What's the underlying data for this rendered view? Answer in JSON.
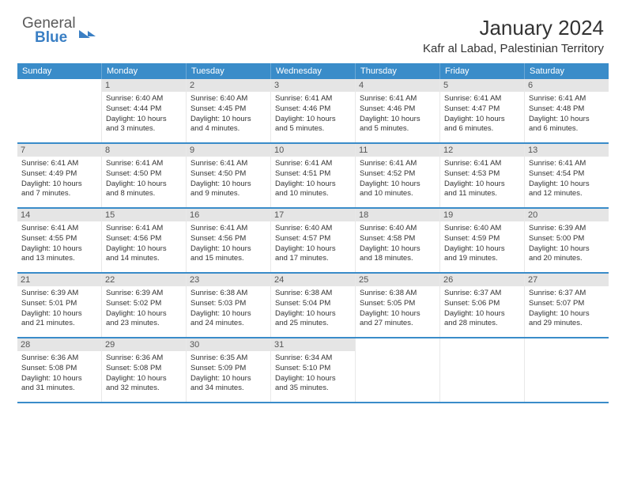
{
  "logo": {
    "line1": "General",
    "line2": "Blue"
  },
  "title": "January 2024",
  "location": "Kafr al Labad, Palestinian Territory",
  "colors": {
    "header_bg": "#3a8cc9",
    "header_text": "#ffffff",
    "daynum_bg": "#e5e5e5",
    "border": "#3a8cc9",
    "text": "#333333",
    "logo_gray": "#5a5a5a",
    "logo_blue": "#3a7fc4"
  },
  "weekdays": [
    "Sunday",
    "Monday",
    "Tuesday",
    "Wednesday",
    "Thursday",
    "Friday",
    "Saturday"
  ],
  "weeks": [
    [
      {
        "n": "",
        "sr": "",
        "ss": "",
        "d1": "",
        "d2": ""
      },
      {
        "n": "1",
        "sr": "Sunrise: 6:40 AM",
        "ss": "Sunset: 4:44 PM",
        "d1": "Daylight: 10 hours",
        "d2": "and 3 minutes."
      },
      {
        "n": "2",
        "sr": "Sunrise: 6:40 AM",
        "ss": "Sunset: 4:45 PM",
        "d1": "Daylight: 10 hours",
        "d2": "and 4 minutes."
      },
      {
        "n": "3",
        "sr": "Sunrise: 6:41 AM",
        "ss": "Sunset: 4:46 PM",
        "d1": "Daylight: 10 hours",
        "d2": "and 5 minutes."
      },
      {
        "n": "4",
        "sr": "Sunrise: 6:41 AM",
        "ss": "Sunset: 4:46 PM",
        "d1": "Daylight: 10 hours",
        "d2": "and 5 minutes."
      },
      {
        "n": "5",
        "sr": "Sunrise: 6:41 AM",
        "ss": "Sunset: 4:47 PM",
        "d1": "Daylight: 10 hours",
        "d2": "and 6 minutes."
      },
      {
        "n": "6",
        "sr": "Sunrise: 6:41 AM",
        "ss": "Sunset: 4:48 PM",
        "d1": "Daylight: 10 hours",
        "d2": "and 6 minutes."
      }
    ],
    [
      {
        "n": "7",
        "sr": "Sunrise: 6:41 AM",
        "ss": "Sunset: 4:49 PM",
        "d1": "Daylight: 10 hours",
        "d2": "and 7 minutes."
      },
      {
        "n": "8",
        "sr": "Sunrise: 6:41 AM",
        "ss": "Sunset: 4:50 PM",
        "d1": "Daylight: 10 hours",
        "d2": "and 8 minutes."
      },
      {
        "n": "9",
        "sr": "Sunrise: 6:41 AM",
        "ss": "Sunset: 4:50 PM",
        "d1": "Daylight: 10 hours",
        "d2": "and 9 minutes."
      },
      {
        "n": "10",
        "sr": "Sunrise: 6:41 AM",
        "ss": "Sunset: 4:51 PM",
        "d1": "Daylight: 10 hours",
        "d2": "and 10 minutes."
      },
      {
        "n": "11",
        "sr": "Sunrise: 6:41 AM",
        "ss": "Sunset: 4:52 PM",
        "d1": "Daylight: 10 hours",
        "d2": "and 10 minutes."
      },
      {
        "n": "12",
        "sr": "Sunrise: 6:41 AM",
        "ss": "Sunset: 4:53 PM",
        "d1": "Daylight: 10 hours",
        "d2": "and 11 minutes."
      },
      {
        "n": "13",
        "sr": "Sunrise: 6:41 AM",
        "ss": "Sunset: 4:54 PM",
        "d1": "Daylight: 10 hours",
        "d2": "and 12 minutes."
      }
    ],
    [
      {
        "n": "14",
        "sr": "Sunrise: 6:41 AM",
        "ss": "Sunset: 4:55 PM",
        "d1": "Daylight: 10 hours",
        "d2": "and 13 minutes."
      },
      {
        "n": "15",
        "sr": "Sunrise: 6:41 AM",
        "ss": "Sunset: 4:56 PM",
        "d1": "Daylight: 10 hours",
        "d2": "and 14 minutes."
      },
      {
        "n": "16",
        "sr": "Sunrise: 6:41 AM",
        "ss": "Sunset: 4:56 PM",
        "d1": "Daylight: 10 hours",
        "d2": "and 15 minutes."
      },
      {
        "n": "17",
        "sr": "Sunrise: 6:40 AM",
        "ss": "Sunset: 4:57 PM",
        "d1": "Daylight: 10 hours",
        "d2": "and 17 minutes."
      },
      {
        "n": "18",
        "sr": "Sunrise: 6:40 AM",
        "ss": "Sunset: 4:58 PM",
        "d1": "Daylight: 10 hours",
        "d2": "and 18 minutes."
      },
      {
        "n": "19",
        "sr": "Sunrise: 6:40 AM",
        "ss": "Sunset: 4:59 PM",
        "d1": "Daylight: 10 hours",
        "d2": "and 19 minutes."
      },
      {
        "n": "20",
        "sr": "Sunrise: 6:39 AM",
        "ss": "Sunset: 5:00 PM",
        "d1": "Daylight: 10 hours",
        "d2": "and 20 minutes."
      }
    ],
    [
      {
        "n": "21",
        "sr": "Sunrise: 6:39 AM",
        "ss": "Sunset: 5:01 PM",
        "d1": "Daylight: 10 hours",
        "d2": "and 21 minutes."
      },
      {
        "n": "22",
        "sr": "Sunrise: 6:39 AM",
        "ss": "Sunset: 5:02 PM",
        "d1": "Daylight: 10 hours",
        "d2": "and 23 minutes."
      },
      {
        "n": "23",
        "sr": "Sunrise: 6:38 AM",
        "ss": "Sunset: 5:03 PM",
        "d1": "Daylight: 10 hours",
        "d2": "and 24 minutes."
      },
      {
        "n": "24",
        "sr": "Sunrise: 6:38 AM",
        "ss": "Sunset: 5:04 PM",
        "d1": "Daylight: 10 hours",
        "d2": "and 25 minutes."
      },
      {
        "n": "25",
        "sr": "Sunrise: 6:38 AM",
        "ss": "Sunset: 5:05 PM",
        "d1": "Daylight: 10 hours",
        "d2": "and 27 minutes."
      },
      {
        "n": "26",
        "sr": "Sunrise: 6:37 AM",
        "ss": "Sunset: 5:06 PM",
        "d1": "Daylight: 10 hours",
        "d2": "and 28 minutes."
      },
      {
        "n": "27",
        "sr": "Sunrise: 6:37 AM",
        "ss": "Sunset: 5:07 PM",
        "d1": "Daylight: 10 hours",
        "d2": "and 29 minutes."
      }
    ],
    [
      {
        "n": "28",
        "sr": "Sunrise: 6:36 AM",
        "ss": "Sunset: 5:08 PM",
        "d1": "Daylight: 10 hours",
        "d2": "and 31 minutes."
      },
      {
        "n": "29",
        "sr": "Sunrise: 6:36 AM",
        "ss": "Sunset: 5:08 PM",
        "d1": "Daylight: 10 hours",
        "d2": "and 32 minutes."
      },
      {
        "n": "30",
        "sr": "Sunrise: 6:35 AM",
        "ss": "Sunset: 5:09 PM",
        "d1": "Daylight: 10 hours",
        "d2": "and 34 minutes."
      },
      {
        "n": "31",
        "sr": "Sunrise: 6:34 AM",
        "ss": "Sunset: 5:10 PM",
        "d1": "Daylight: 10 hours",
        "d2": "and 35 minutes."
      },
      {
        "n": "",
        "sr": "",
        "ss": "",
        "d1": "",
        "d2": ""
      },
      {
        "n": "",
        "sr": "",
        "ss": "",
        "d1": "",
        "d2": ""
      },
      {
        "n": "",
        "sr": "",
        "ss": "",
        "d1": "",
        "d2": ""
      }
    ]
  ]
}
